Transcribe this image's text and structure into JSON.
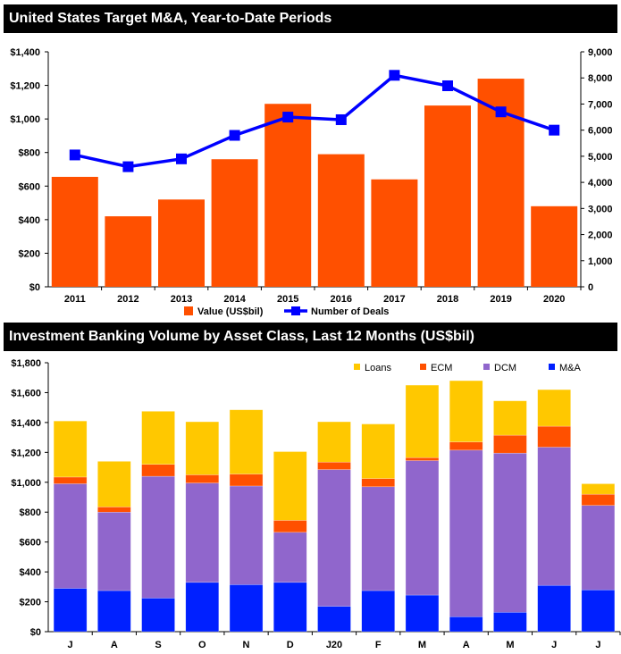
{
  "chart_data": [
    {
      "type": "bar+line",
      "title": "United States Target M&A, Year-to-Date Periods",
      "categories": [
        "2011",
        "2012",
        "2013",
        "2014",
        "2015",
        "2016",
        "2017",
        "2018",
        "2019",
        "2020"
      ],
      "series": [
        {
          "name": "Value  (US$bil)",
          "type": "bar",
          "axis": "left",
          "color": "#FF5000",
          "values": [
            655,
            420,
            520,
            760,
            1090,
            790,
            640,
            1080,
            1240,
            480
          ]
        },
        {
          "name": "Number of Deals",
          "type": "line",
          "axis": "right",
          "color": "#0000FF",
          "values": [
            5050,
            4600,
            4900,
            5800,
            6500,
            6400,
            8100,
            7700,
            6700,
            6000
          ]
        }
      ],
      "ylim": [
        0,
        1400
      ],
      "yticks": [
        "$0",
        "$200",
        "$400",
        "$600",
        "$800",
        "$1,000",
        "$1,200",
        "$1,400"
      ],
      "y2lim": [
        0,
        9000
      ],
      "y2ticks": [
        "0",
        "1,000",
        "2,000",
        "3,000",
        "4,000",
        "5,000",
        "6,000",
        "7,000",
        "8,000",
        "9,000"
      ],
      "legend": "bottom"
    },
    {
      "type": "stacked-bar",
      "title": "Investment Banking Volume by Asset Class, Last 12 Months (US$bil)",
      "categories": [
        "J",
        "A",
        "S",
        "O",
        "N",
        "D",
        "J20",
        "F",
        "M",
        "A",
        "M",
        "J",
        "J"
      ],
      "series": [
        {
          "name": "M&A",
          "color": "#0020FF",
          "values": [
            290,
            275,
            225,
            330,
            315,
            330,
            170,
            275,
            245,
            100,
            130,
            310,
            280
          ]
        },
        {
          "name": "DCM",
          "color": "#9066CC",
          "values": [
            700,
            525,
            815,
            665,
            660,
            335,
            915,
            695,
            900,
            1115,
            1065,
            925,
            565
          ]
        },
        {
          "name": "ECM",
          "color": "#FF5000",
          "values": [
            45,
            35,
            80,
            55,
            80,
            80,
            50,
            55,
            20,
            55,
            120,
            140,
            75
          ]
        },
        {
          "name": "Loans",
          "color": "#FFC800",
          "values": [
            375,
            305,
            355,
            355,
            430,
            460,
            270,
            365,
            485,
            410,
            230,
            245,
            70
          ]
        }
      ],
      "legend_order": [
        "Loans",
        "ECM",
        "DCM",
        "M&A"
      ],
      "ylim": [
        0,
        1800
      ],
      "yticks": [
        "$0",
        "$200",
        "$400",
        "$600",
        "$800",
        "$1,000",
        "$1,200",
        "$1,400",
        "$1,600",
        "$1,800"
      ],
      "legend": "top-right"
    }
  ]
}
